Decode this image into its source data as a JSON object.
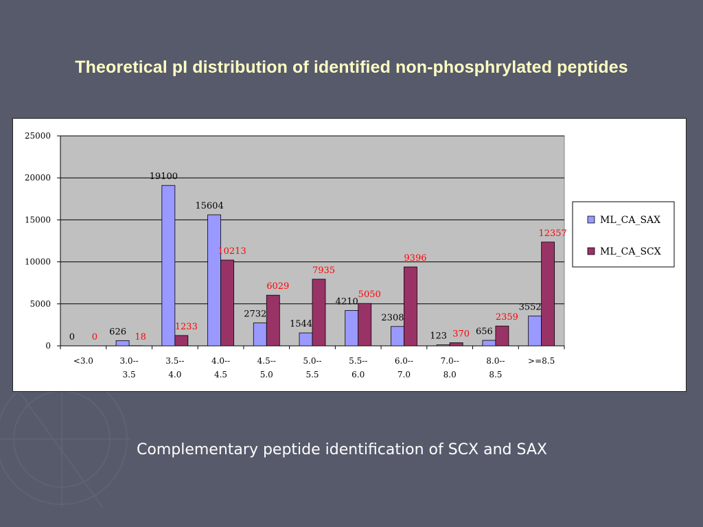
{
  "slide": {
    "title": "Theoretical pI distribution of identified non-phosphrylated peptides",
    "subtitle": "Complementary peptide identification of SCX and SAX"
  },
  "colors": {
    "background": "#575a6b",
    "title": "#fdfdc2",
    "plot_area": "#c0c0c0",
    "sax": "#9999ff",
    "scx": "#993366",
    "scx_label": "#ff0000"
  },
  "chart_data": {
    "type": "bar",
    "categories": [
      "<3.0",
      "3.0--\n3.5",
      "3.5--\n4.0",
      "4.0--\n4.5",
      "4.5--\n5.0",
      "5.0--\n5.5",
      "5.5--\n6.0",
      "6.0--\n7.0",
      "7.0--\n8.0",
      "8.0--\n8.5",
      ">=8.5"
    ],
    "series": [
      {
        "name": "ML_CA_SAX",
        "values": [
          0,
          626,
          19100,
          15604,
          2732,
          1544,
          4210,
          2308,
          123,
          656,
          3552
        ]
      },
      {
        "name": "ML_CA_SCX",
        "values": [
          0,
          18,
          1233,
          10213,
          6029,
          7935,
          5050,
          9396,
          370,
          2359,
          12357
        ]
      }
    ],
    "ylim": [
      0,
      25000
    ],
    "yticks": [
      0,
      5000,
      10000,
      15000,
      20000,
      25000
    ],
    "grid": true,
    "legend": "right"
  }
}
